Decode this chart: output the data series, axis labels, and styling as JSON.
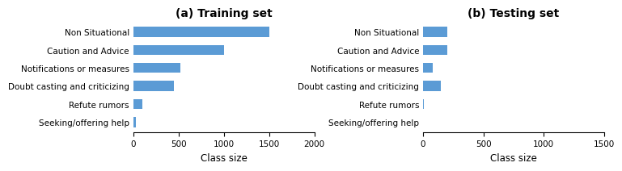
{
  "title_a": "(a) Training set",
  "title_b": "(b) Testing set",
  "categories": [
    "Non Situational",
    "Caution and Advice",
    "Notifications or measures",
    "Doubt casting and criticizing",
    "Refute rumors",
    "Seeking/offering help"
  ],
  "values_a": [
    1500,
    1000,
    520,
    450,
    100,
    30
  ],
  "values_b": [
    200,
    200,
    80,
    150,
    8,
    2
  ],
  "bar_color": "#5b9bd5",
  "xlabel": "Class size",
  "xlim_a": [
    0,
    2000
  ],
  "xlim_b": [
    0,
    1500
  ],
  "xticks_a": [
    0,
    500,
    1000,
    1500,
    2000
  ],
  "xticks_b": [
    0,
    500,
    1000,
    1500
  ],
  "bg_color": "#ffffff",
  "title_fontsize": 10,
  "label_fontsize": 7.5,
  "tick_fontsize": 7.5,
  "xlabel_fontsize": 8.5
}
